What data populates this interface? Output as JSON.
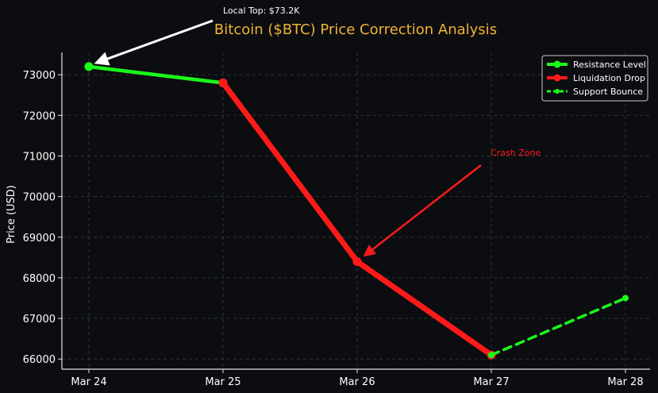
{
  "chart_data": {
    "type": "line",
    "title": "Bitcoin ($BTC) Price Correction Analysis",
    "xlabel": "",
    "ylabel": "Price (USD)",
    "categories": [
      "Mar 24",
      "Mar 25",
      "Mar 26",
      "Mar 27",
      "Mar 28"
    ],
    "yticks": [
      66000,
      67000,
      68000,
      69000,
      70000,
      71000,
      72000,
      73000
    ],
    "ylim": [
      65750,
      73550
    ],
    "grid": true,
    "legend_position": "top-right",
    "series": [
      {
        "name": "Resistance Level",
        "color": "#1aff1a",
        "style": "solid",
        "points": [
          [
            "Mar 24",
            73200
          ],
          [
            "Mar 25",
            72800
          ]
        ]
      },
      {
        "name": "Liquidation Drop",
        "color": "#ff1a1a",
        "style": "solid",
        "points": [
          [
            "Mar 25",
            72800
          ],
          [
            "Mar 26",
            68400
          ],
          [
            "Mar 27",
            66100
          ]
        ]
      },
      {
        "name": "Support Bounce",
        "color": "#1aff1a",
        "style": "dashed",
        "points": [
          [
            "Mar 27",
            66100
          ],
          [
            "Mar 28",
            67500
          ]
        ]
      }
    ],
    "annotations": [
      {
        "text": "Local Top: $73.2K",
        "target": [
          "Mar 24",
          73200
        ],
        "color": "#ffffff"
      },
      {
        "text": "Crash Zone",
        "target": [
          "Mar 26",
          68400
        ],
        "color": "#ff1a1a"
      }
    ]
  }
}
